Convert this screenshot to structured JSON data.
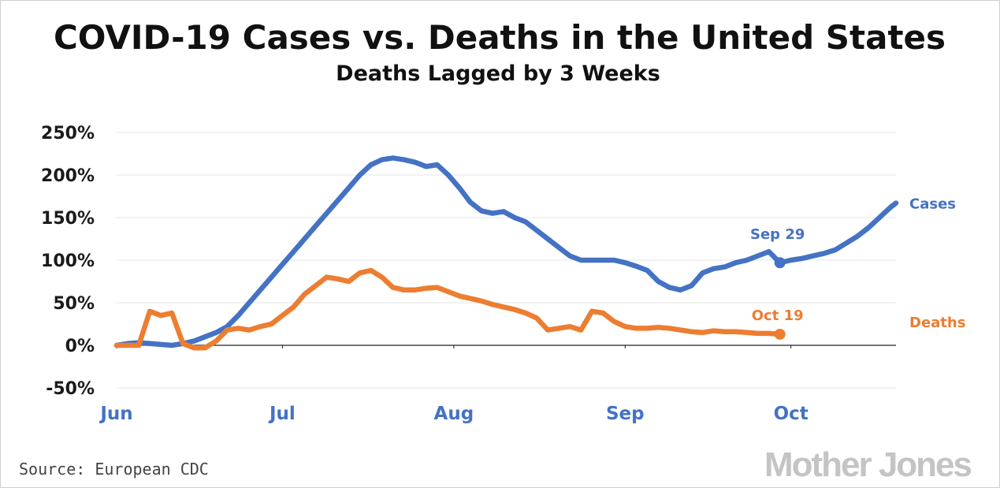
{
  "chart_data": {
    "type": "line",
    "title": "COVID-19 Cases vs. Deaths in the United States",
    "subtitle": "Deaths Lagged by 3 Weeks",
    "xlabel": "",
    "ylabel": "",
    "x_tick_labels": [
      {
        "label": "Jun",
        "day": 0
      },
      {
        "label": "Jul",
        "day": 30
      },
      {
        "label": "Aug",
        "day": 61
      },
      {
        "label": "Sep",
        "day": 92
      },
      {
        "label": "Oct",
        "day": 122
      }
    ],
    "y_tick_labels": [
      "250%",
      "200%",
      "150%",
      "100%",
      "50%",
      "0%",
      "-50%"
    ],
    "y_tick_values": [
      250,
      200,
      150,
      100,
      50,
      0,
      -50
    ],
    "ylim": [
      -50,
      250
    ],
    "x_range": [
      "Jun 1",
      "Oct 20"
    ],
    "grid": true,
    "series": [
      {
        "name": "Cases",
        "color": "#4472c4",
        "dates": [
          "Jun 1",
          "Jun 3",
          "Jun 5",
          "Jun 7",
          "Jun 9",
          "Jun 11",
          "Jun 13",
          "Jun 15",
          "Jun 17",
          "Jun 19",
          "Jun 21",
          "Jun 23",
          "Jun 25",
          "Jun 27",
          "Jun 29",
          "Jul 1",
          "Jul 3",
          "Jul 5",
          "Jul 7",
          "Jul 9",
          "Jul 11",
          "Jul 13",
          "Jul 15",
          "Jul 17",
          "Jul 19",
          "Jul 21",
          "Jul 23",
          "Jul 25",
          "Jul 27",
          "Jul 29",
          "Jul 31",
          "Aug 2",
          "Aug 4",
          "Aug 6",
          "Aug 8",
          "Aug 10",
          "Aug 12",
          "Aug 14",
          "Aug 16",
          "Aug 18",
          "Aug 20",
          "Aug 22",
          "Aug 24",
          "Aug 26",
          "Aug 28",
          "Aug 30",
          "Sep 1",
          "Sep 3",
          "Sep 5",
          "Sep 7",
          "Sep 9",
          "Sep 11",
          "Sep 13",
          "Sep 15",
          "Sep 17",
          "Sep 19",
          "Sep 21",
          "Sep 23",
          "Sep 25",
          "Sep 27",
          "Sep 29",
          "Oct 1",
          "Oct 3",
          "Oct 5",
          "Oct 7",
          "Oct 9",
          "Oct 11",
          "Oct 13",
          "Oct 15",
          "Oct 17",
          "Oct 19",
          "Oct 20"
        ],
        "values": [
          0,
          2,
          3,
          2,
          1,
          0,
          2,
          5,
          10,
          15,
          22,
          35,
          50,
          65,
          80,
          95,
          110,
          125,
          140,
          155,
          170,
          185,
          200,
          212,
          218,
          220,
          218,
          215,
          210,
          212,
          200,
          185,
          168,
          158,
          155,
          157,
          150,
          145,
          135,
          125,
          115,
          105,
          100,
          100,
          100,
          100,
          97,
          93,
          88,
          75,
          68,
          65,
          70,
          85,
          90,
          92,
          97,
          100,
          105,
          110,
          97,
          100,
          102,
          105,
          108,
          112,
          120,
          128,
          138,
          150,
          162,
          167
        ]
      },
      {
        "name": "Deaths",
        "color": "#ed7d31",
        "dates": [
          "Jun 1",
          "Jun 3",
          "Jun 5",
          "Jun 7",
          "Jun 9",
          "Jun 11",
          "Jun 13",
          "Jun 15",
          "Jun 17",
          "Jun 19",
          "Jun 21",
          "Jun 23",
          "Jun 25",
          "Jun 27",
          "Jun 29",
          "Jul 1",
          "Jul 3",
          "Jul 5",
          "Jul 7",
          "Jul 9",
          "Jul 11",
          "Jul 13",
          "Jul 15",
          "Jul 17",
          "Jul 19",
          "Jul 21",
          "Jul 23",
          "Jul 25",
          "Jul 27",
          "Jul 29",
          "Jul 31",
          "Aug 2",
          "Aug 4",
          "Aug 6",
          "Aug 8",
          "Aug 10",
          "Aug 12",
          "Aug 14",
          "Aug 16",
          "Aug 18",
          "Aug 20",
          "Aug 22",
          "Aug 24",
          "Aug 26",
          "Aug 28",
          "Aug 30",
          "Sep 1",
          "Sep 3",
          "Sep 5",
          "Sep 7",
          "Sep 9",
          "Sep 11",
          "Sep 13",
          "Sep 15",
          "Sep 17",
          "Sep 19",
          "Sep 21",
          "Sep 23",
          "Sep 25",
          "Sep 27",
          "Sep 29"
        ],
        "values": [
          0,
          0,
          0,
          40,
          35,
          38,
          2,
          -3,
          -3,
          5,
          18,
          20,
          18,
          22,
          25,
          35,
          45,
          60,
          70,
          80,
          78,
          75,
          85,
          88,
          80,
          68,
          65,
          65,
          67,
          68,
          63,
          58,
          55,
          52,
          48,
          45,
          42,
          38,
          32,
          18,
          20,
          22,
          18,
          40,
          38,
          28,
          22,
          20,
          20,
          21,
          20,
          18,
          16,
          15,
          17,
          16,
          16,
          15,
          14,
          14,
          13
        ]
      }
    ],
    "annotations": [
      {
        "text": "Sep 29",
        "series": "Cases",
        "date": "Sep 29",
        "value": 97
      },
      {
        "text": "Oct 19",
        "series": "Deaths",
        "date": "Sep 29",
        "value": 13
      }
    ],
    "series_labels": [
      {
        "text": "Cases",
        "color": "#4472c4"
      },
      {
        "text": "Deaths",
        "color": "#ed7d31"
      }
    ]
  },
  "source": "Source: European CDC",
  "logo": "Mother Jones",
  "colors": {
    "cases": "#4472c4",
    "deaths": "#ed7d31",
    "x_tick": "#4472c4",
    "grid": "#e6e6e6"
  }
}
